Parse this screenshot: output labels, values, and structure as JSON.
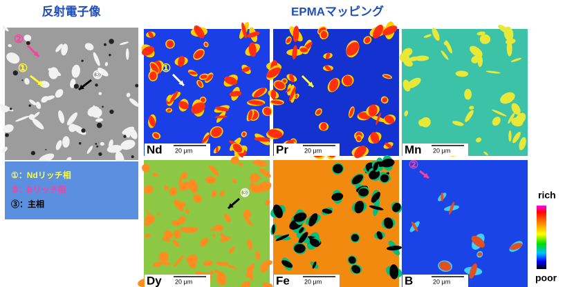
{
  "titles": {
    "bse": "反射電子像",
    "epma": "EPMAマッピング"
  },
  "bse_markers": [
    "②",
    "①",
    "③"
  ],
  "legend": [
    "①：Ndリッチ相",
    "②：Bリッチ相",
    "③：主相"
  ],
  "panels": [
    {
      "element": "Nd",
      "scale": "20 μm",
      "marker": "①"
    },
    {
      "element": "Pr",
      "scale": "20 μm"
    },
    {
      "element": "Mn",
      "scale": "20 μm"
    },
    {
      "element": "Dy",
      "scale": "20 μm",
      "marker": "③"
    },
    {
      "element": "Fe",
      "scale": "20 μm"
    },
    {
      "element": "B",
      "scale": "20 μm",
      "marker": "②"
    }
  ],
  "colorbar": {
    "top": "rich",
    "bottom": "poor"
  }
}
